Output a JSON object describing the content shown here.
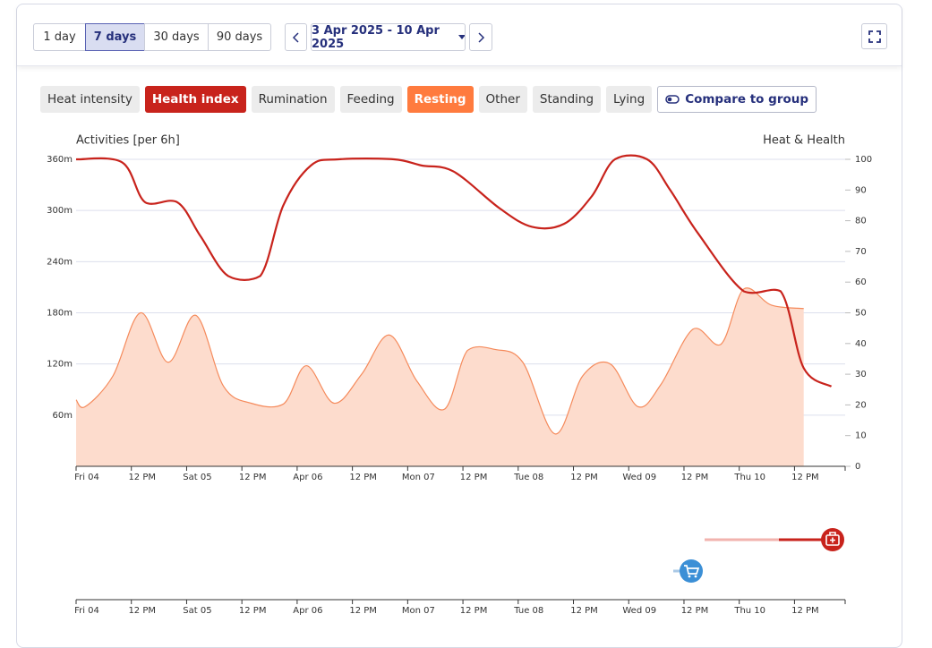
{
  "controls": {
    "ranges": [
      "1 day",
      "7 days",
      "30 days",
      "90 days"
    ],
    "date_range": "3 Apr 2025 - 10 Apr 2025"
  },
  "tabs": [
    "Heat intensity",
    "Rumination",
    "Feeding",
    "Other",
    "Standing",
    "Lying"
  ],
  "compare": "Compare to group",
  "chart_data": {
    "type": "line",
    "y_label": "Activities [per 6h]",
    "y2_label": "Heat & Health",
    "xlim": [
      0,
      167
    ],
    "xticks": [
      {
        "value": 0,
        "label": "Fri 04"
      },
      {
        "value": 12,
        "label": "12 PM"
      },
      {
        "value": 24,
        "label": "Sat 05"
      },
      {
        "value": 36,
        "label": "12 PM"
      },
      {
        "value": 48,
        "label": "Apr 06"
      },
      {
        "value": 60,
        "label": "12 PM"
      },
      {
        "value": 72,
        "label": "Mon 07"
      },
      {
        "value": 84,
        "label": "12 PM"
      },
      {
        "value": 96,
        "label": "Tue 08"
      },
      {
        "value": 108,
        "label": "12 PM"
      },
      {
        "value": 120,
        "label": "Wed 09"
      },
      {
        "value": 132,
        "label": "12 PM"
      },
      {
        "value": 144,
        "label": "Thu 10"
      },
      {
        "value": 156,
        "label": "12 PM"
      }
    ],
    "ylim": [
      0,
      360
    ],
    "yticks": [
      {
        "value": 60,
        "label": "60m"
      },
      {
        "value": 120,
        "label": "120m"
      },
      {
        "value": 180,
        "label": "180m"
      },
      {
        "value": 240,
        "label": "240m"
      },
      {
        "value": 300,
        "label": "300m"
      },
      {
        "value": 360,
        "label": "360m"
      }
    ],
    "y2lim": [
      0,
      100
    ],
    "y2ticks": [
      0,
      10,
      20,
      30,
      40,
      50,
      60,
      70,
      80,
      90,
      100
    ],
    "grid": true,
    "series": [
      {
        "name": "Health index",
        "color": "#c8231c",
        "axis": "y2",
        "x": [
          0,
          10,
          15,
          22,
          27,
          33,
          40,
          45,
          51,
          57,
          69,
          75,
          82,
          92,
          99,
          106,
          112,
          117,
          124,
          129,
          135,
          145,
          153,
          158,
          164
        ],
        "values": [
          100,
          99,
          86,
          86,
          75,
          62,
          62,
          85,
          98,
          100,
          100,
          98,
          96,
          84,
          78,
          79,
          88,
          100,
          100,
          90,
          76,
          57,
          57,
          32,
          26
        ]
      },
      {
        "name": "Resting",
        "color": "#f58a5b",
        "fill": "#fddccd",
        "area": true,
        "x": [
          0,
          2,
          8,
          14,
          20,
          26,
          32,
          38,
          45,
          50,
          56,
          62,
          68,
          74,
          80,
          85,
          91,
          97,
          104,
          110,
          116,
          122,
          127,
          134,
          140,
          145,
          151,
          158
        ],
        "values": [
          78,
          70,
          106,
          180,
          122,
          177,
          94,
          74,
          73,
          118,
          74,
          108,
          154,
          100,
          67,
          136,
          137,
          122,
          38,
          106,
          120,
          70,
          96,
          161,
          143,
          208,
          189,
          185
        ]
      }
    ]
  }
}
